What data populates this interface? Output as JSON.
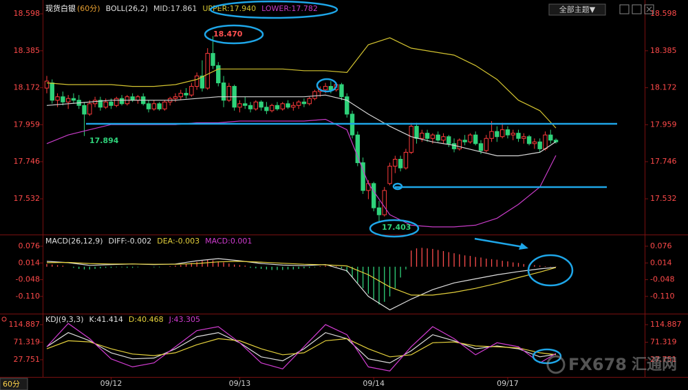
{
  "chart_data": [
    {
      "type": "candlestick",
      "title": "现货白银",
      "subtitle": "(60分)",
      "indicator": "BOLL(26,2)",
      "ylim": [
        17.33,
        18.638
      ],
      "yticks": [
        18.598,
        18.385,
        18.172,
        17.959,
        17.746,
        17.532
      ],
      "up_color": "#ff3c3c",
      "down_color": "#2fd27a",
      "categories": [
        null,
        null,
        null,
        null,
        null,
        null,
        null,
        null,
        null,
        null,
        null,
        null,
        "09/12",
        null,
        null,
        null,
        null,
        null,
        null,
        null,
        null,
        null,
        null,
        null,
        null,
        null,
        null,
        null,
        null,
        null,
        null,
        null,
        null,
        null,
        null,
        null,
        "09/13",
        null,
        null,
        null,
        null,
        null,
        null,
        null,
        null,
        null,
        null,
        null,
        null,
        null,
        null,
        null,
        null,
        null,
        null,
        null,
        null,
        null,
        null,
        null,
        null,
        "09/14",
        null,
        null,
        null,
        null,
        null,
        null,
        null,
        null,
        null,
        null,
        null,
        null,
        null,
        null,
        null,
        null,
        null,
        null,
        null,
        null,
        null,
        null,
        null,
        null,
        "09/17",
        null,
        null,
        null,
        null,
        null,
        null,
        null,
        null,
        null
      ],
      "ohlc": [
        [
          18.17,
          18.24,
          18.14,
          18.21
        ],
        [
          18.2,
          18.22,
          18.08,
          18.1
        ],
        [
          18.1,
          18.14,
          18.06,
          18.12
        ],
        [
          18.12,
          18.15,
          18.07,
          18.09
        ],
        [
          18.09,
          18.13,
          18.05,
          18.11
        ],
        [
          18.11,
          18.14,
          18.08,
          18.1
        ],
        [
          18.1,
          18.13,
          18.05,
          18.07
        ],
        [
          18.07,
          18.09,
          17.894,
          18.02
        ],
        [
          18.02,
          18.1,
          18.01,
          18.08
        ],
        [
          18.08,
          18.12,
          18.06,
          18.1
        ],
        [
          18.1,
          18.12,
          18.04,
          18.06
        ],
        [
          18.06,
          18.11,
          18.05,
          18.09
        ],
        [
          18.09,
          18.11,
          18.05,
          18.07
        ],
        [
          18.07,
          18.12,
          18.06,
          18.11
        ],
        [
          18.11,
          18.13,
          18.07,
          18.08
        ],
        [
          18.08,
          18.13,
          18.07,
          18.12
        ],
        [
          18.12,
          18.14,
          18.09,
          18.1
        ],
        [
          18.1,
          18.13,
          18.08,
          18.12
        ],
        [
          18.12,
          18.14,
          18.07,
          18.08
        ],
        [
          18.08,
          18.1,
          18.03,
          18.05
        ],
        [
          18.05,
          18.1,
          18.04,
          18.08
        ],
        [
          18.08,
          18.09,
          18.04,
          18.05
        ],
        [
          18.05,
          18.1,
          18.04,
          18.09
        ],
        [
          18.09,
          18.12,
          18.07,
          18.11
        ],
        [
          18.11,
          18.14,
          18.09,
          18.12
        ],
        [
          18.12,
          18.16,
          18.1,
          18.14
        ],
        [
          18.14,
          18.17,
          18.11,
          18.13
        ],
        [
          18.13,
          18.2,
          18.12,
          18.18
        ],
        [
          18.18,
          18.26,
          18.16,
          18.24
        ],
        [
          18.24,
          18.33,
          18.15,
          18.17
        ],
        [
          18.17,
          18.4,
          18.16,
          18.37
        ],
        [
          18.37,
          18.47,
          18.28,
          18.3
        ],
        [
          18.3,
          18.32,
          18.18,
          18.2
        ],
        [
          18.2,
          18.24,
          18.06,
          18.1
        ],
        [
          18.1,
          18.2,
          18.09,
          18.18
        ],
        [
          18.18,
          18.19,
          18.04,
          18.06
        ],
        [
          18.06,
          18.1,
          18.03,
          18.08
        ],
        [
          18.08,
          18.12,
          18.05,
          18.07
        ],
        [
          18.07,
          18.09,
          18.03,
          18.05
        ],
        [
          18.05,
          18.1,
          18.04,
          18.09
        ],
        [
          18.09,
          18.1,
          18.04,
          18.06
        ],
        [
          18.06,
          18.09,
          18.02,
          18.04
        ],
        [
          18.04,
          18.08,
          18.03,
          18.07
        ],
        [
          18.07,
          18.09,
          18.04,
          18.05
        ],
        [
          18.05,
          18.09,
          18.04,
          18.08
        ],
        [
          18.08,
          18.1,
          18.05,
          18.06
        ],
        [
          18.06,
          18.09,
          18.04,
          18.07
        ],
        [
          18.07,
          18.1,
          18.05,
          18.09
        ],
        [
          18.09,
          18.11,
          18.06,
          18.08
        ],
        [
          18.08,
          18.12,
          18.07,
          18.11
        ],
        [
          18.11,
          18.16,
          18.1,
          18.15
        ],
        [
          18.15,
          18.18,
          18.12,
          18.16
        ],
        [
          18.16,
          18.2,
          18.14,
          18.18
        ],
        [
          18.18,
          18.21,
          18.14,
          18.16
        ],
        [
          18.16,
          18.2,
          18.15,
          18.19
        ],
        [
          18.19,
          18.2,
          18.1,
          18.12
        ],
        [
          18.12,
          18.14,
          18.0,
          18.02
        ],
        [
          18.02,
          18.04,
          17.88,
          17.9
        ],
        [
          17.9,
          17.92,
          17.72,
          17.74
        ],
        [
          17.74,
          17.77,
          17.56,
          17.58
        ],
        [
          17.58,
          17.64,
          17.53,
          17.62
        ],
        [
          17.62,
          17.63,
          17.46,
          17.48
        ],
        [
          17.48,
          17.52,
          17.403,
          17.44
        ],
        [
          17.44,
          17.6,
          17.43,
          17.58
        ],
        [
          17.62,
          17.74,
          17.61,
          17.72
        ],
        [
          17.72,
          17.78,
          17.68,
          17.76
        ],
        [
          17.76,
          17.78,
          17.69,
          17.71
        ],
        [
          17.71,
          17.82,
          17.7,
          17.8
        ],
        [
          17.8,
          17.97,
          17.79,
          17.95
        ],
        [
          17.95,
          17.97,
          17.85,
          17.88
        ],
        [
          17.88,
          17.93,
          17.86,
          17.91
        ],
        [
          17.91,
          17.93,
          17.86,
          17.88
        ],
        [
          17.88,
          17.91,
          17.85,
          17.9
        ],
        [
          17.9,
          17.92,
          17.86,
          17.87
        ],
        [
          17.87,
          17.91,
          17.85,
          17.89
        ],
        [
          17.89,
          17.9,
          17.83,
          17.85
        ],
        [
          17.85,
          17.88,
          17.8,
          17.82
        ],
        [
          17.82,
          17.88,
          17.81,
          17.87
        ],
        [
          17.87,
          17.9,
          17.84,
          17.86
        ],
        [
          17.86,
          17.91,
          17.85,
          17.9
        ],
        [
          17.9,
          17.92,
          17.84,
          17.85
        ],
        [
          17.85,
          17.87,
          17.79,
          17.81
        ],
        [
          17.81,
          17.9,
          17.8,
          17.88
        ],
        [
          17.88,
          17.98,
          17.86,
          17.92
        ],
        [
          17.92,
          17.95,
          17.86,
          17.89
        ],
        [
          17.89,
          17.97,
          17.88,
          17.93
        ],
        [
          17.93,
          17.95,
          17.88,
          17.9
        ],
        [
          17.9,
          17.93,
          17.87,
          17.91
        ],
        [
          17.91,
          17.93,
          17.86,
          17.88
        ],
        [
          17.88,
          17.91,
          17.85,
          17.89
        ],
        [
          17.89,
          17.9,
          17.84,
          17.85
        ],
        [
          17.85,
          17.88,
          17.82,
          17.86
        ],
        [
          17.86,
          17.88,
          17.8,
          17.82
        ],
        [
          17.82,
          17.92,
          17.81,
          17.9
        ],
        [
          17.9,
          17.93,
          17.85,
          17.87
        ],
        [
          17.87,
          17.88,
          17.85,
          17.86
        ]
      ],
      "x": [
        0,
        4,
        8,
        12,
        16,
        20,
        24,
        28,
        32,
        36,
        40,
        44,
        48,
        52,
        56,
        60,
        64,
        68,
        72,
        76,
        80,
        84,
        88,
        92,
        95
      ],
      "series": [
        {
          "name": "MID:17.861",
          "color": "#d8d8d8",
          "values": [
            18.07,
            18.08,
            18.09,
            18.1,
            18.1,
            18.1,
            18.1,
            18.11,
            18.12,
            18.12,
            18.12,
            18.12,
            18.12,
            18.13,
            18.1,
            18.02,
            17.95,
            17.89,
            17.86,
            17.84,
            17.81,
            17.78,
            17.78,
            17.8,
            17.861
          ]
        },
        {
          "name": "UPPER:17.940",
          "color": "#d4c430",
          "values": [
            18.2,
            18.19,
            18.19,
            18.19,
            18.18,
            18.18,
            18.19,
            18.22,
            18.28,
            18.28,
            18.28,
            18.28,
            18.27,
            18.27,
            18.26,
            18.42,
            18.46,
            18.4,
            18.38,
            18.36,
            18.3,
            18.22,
            18.1,
            18.04,
            17.94
          ]
        },
        {
          "name": "LOWER:17.782",
          "color": "#c83cc8",
          "values": [
            17.85,
            17.9,
            17.93,
            17.96,
            17.96,
            17.96,
            17.96,
            17.97,
            17.97,
            17.98,
            17.98,
            17.98,
            17.98,
            17.99,
            17.93,
            17.62,
            17.44,
            17.38,
            17.37,
            17.37,
            17.38,
            17.42,
            17.5,
            17.6,
            17.782
          ]
        }
      ],
      "annotations": [
        "18.470",
        "17.894",
        "17.403"
      ]
    },
    {
      "type": "macd",
      "indicator": "MACD(26,12,9)",
      "ylim": [
        -0.179,
        0.109
      ],
      "yticks": [
        0.076,
        0.014,
        -0.048,
        {
          "value": -0.11,
          "label": "-0.110"
        }
      ],
      "x": [
        0,
        4,
        8,
        12,
        16,
        20,
        24,
        28,
        32,
        36,
        40,
        44,
        48,
        52,
        56,
        60,
        64,
        68,
        72,
        76,
        80,
        84,
        88,
        92,
        95
      ],
      "series": [
        {
          "name": "DIFF:-0.002",
          "color": "#e0e0e0",
          "values": [
            0.02,
            0.015,
            0.005,
            0.008,
            0.01,
            0.008,
            0.01,
            0.022,
            0.03,
            0.022,
            0.012,
            0.006,
            0.004,
            0.008,
            -0.015,
            -0.11,
            -0.16,
            -0.12,
            -0.085,
            -0.06,
            -0.045,
            -0.03,
            -0.018,
            -0.008,
            -0.002
          ]
        },
        {
          "name": "DEA:-0.003",
          "color": "#e6d23c",
          "values": [
            0.015,
            0.016,
            0.012,
            0.01,
            0.01,
            0.009,
            0.009,
            0.012,
            0.018,
            0.02,
            0.017,
            0.013,
            0.009,
            0.007,
            0.003,
            -0.03,
            -0.075,
            -0.105,
            -0.105,
            -0.095,
            -0.08,
            -0.062,
            -0.04,
            -0.02,
            -0.003
          ]
        }
      ],
      "histogram": {
        "name": "MACD:0.001",
        "color": "#d23cd2",
        "up_color": "#ff4d4d",
        "down_color": "#2fd27a",
        "values": [
          0.01,
          0.008,
          0.006,
          0.004,
          0.0,
          -0.004,
          -0.008,
          -0.01,
          -0.01,
          -0.008,
          -0.006,
          -0.004,
          -0.004,
          -0.002,
          -0.002,
          -0.004,
          -0.004,
          -0.002,
          0.0,
          0.0,
          -0.002,
          -0.002,
          0.0,
          0.002,
          0.004,
          0.006,
          0.01,
          0.014,
          0.018,
          0.022,
          0.026,
          0.024,
          0.02,
          0.016,
          0.012,
          0.008,
          0.006,
          0.004,
          -0.004,
          -0.006,
          -0.008,
          -0.01,
          -0.012,
          -0.012,
          -0.012,
          -0.01,
          -0.01,
          -0.008,
          -0.006,
          -0.004,
          -0.002,
          0.002,
          0.004,
          0.006,
          0.002,
          -0.006,
          -0.02,
          -0.04,
          -0.06,
          -0.08,
          -0.1,
          -0.12,
          -0.14,
          -0.13,
          -0.11,
          -0.08,
          -0.04,
          -0.01,
          0.06,
          0.068,
          0.07,
          0.068,
          0.066,
          0.062,
          0.058,
          0.054,
          0.05,
          0.046,
          0.042,
          0.04,
          0.036,
          0.034,
          0.03,
          0.028,
          0.026,
          0.022,
          0.02,
          0.016,
          0.014,
          0.01,
          0.008,
          0.006,
          0.004,
          0.002,
          0.001,
          0.001
        ]
      }
    },
    {
      "type": "line",
      "indicator": "KDJ(9,3,3)",
      "ylim": [
        -9.8,
        138.8
      ],
      "yticks": [
        114.887,
        71.319,
        27.751
      ],
      "x": [
        0,
        4,
        8,
        12,
        16,
        20,
        24,
        28,
        32,
        36,
        40,
        44,
        48,
        52,
        56,
        60,
        64,
        68,
        72,
        76,
        80,
        84,
        88,
        92,
        95
      ],
      "series": [
        {
          "name": "K:41.414",
          "color": "#e0e0e0",
          "values": [
            60,
            95,
            75,
            45,
            30,
            32,
            55,
            85,
            95,
            70,
            35,
            25,
            55,
            95,
            80,
            30,
            20,
            50,
            90,
            75,
            55,
            62,
            55,
            35,
            41.414
          ]
        },
        {
          "name": "D:40.468",
          "color": "#e6d23c",
          "values": [
            55,
            75,
            72,
            55,
            42,
            38,
            45,
            65,
            80,
            75,
            55,
            40,
            45,
            75,
            80,
            55,
            35,
            40,
            70,
            72,
            62,
            60,
            57,
            45,
            40.468
          ]
        },
        {
          "name": "J:43.305",
          "color": "#d23cd2",
          "values": [
            60,
            118,
            80,
            30,
            10,
            20,
            60,
            100,
            110,
            70,
            20,
            5,
            60,
            115,
            90,
            10,
            0,
            60,
            110,
            80,
            40,
            70,
            60,
            20,
            43.305
          ]
        }
      ]
    }
  ],
  "ui": {
    "period": "60分",
    "theme_button": "全部主题▼",
    "watermark": "FX678",
    "watermark_cn": "汇通网"
  }
}
